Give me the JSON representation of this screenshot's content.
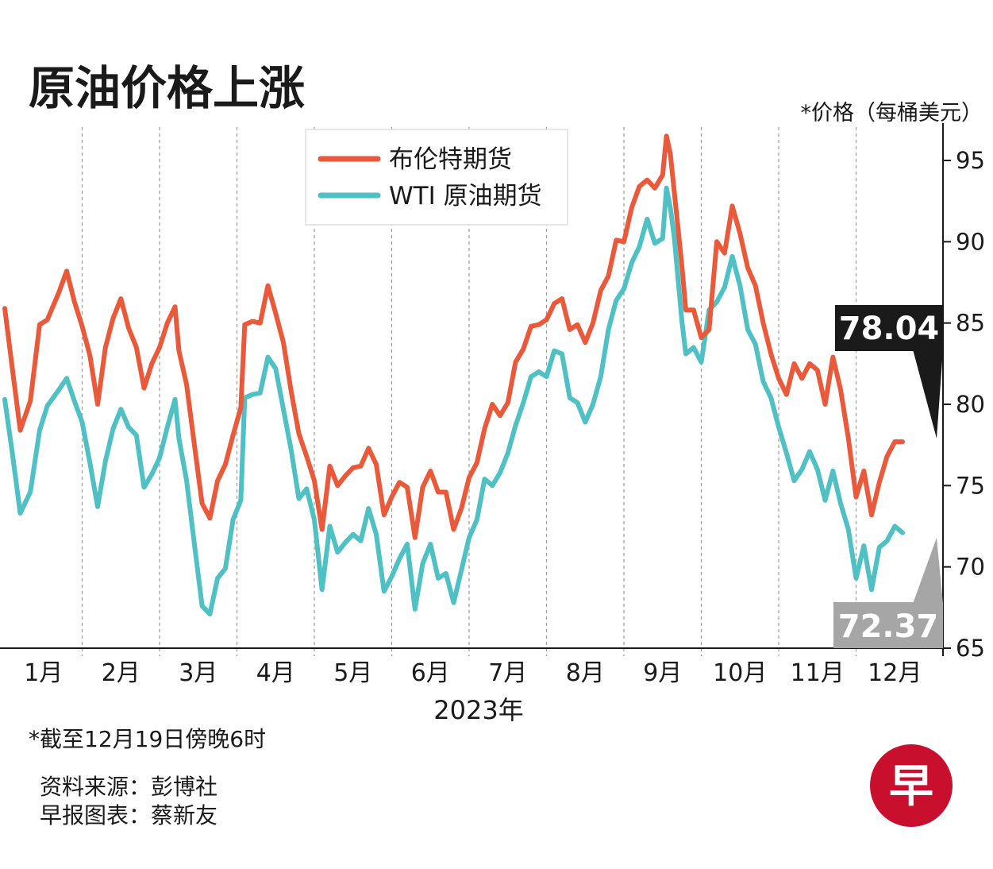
{
  "title": "原油价格上涨",
  "unit_label": "*价格（每桶美元）",
  "note": "*截至12月19日傍晚6时",
  "source": "资料来源：彭博社",
  "credit": "早报图表：蔡新友",
  "logo_char": "早",
  "colors": {
    "brent": "#ea5a3a",
    "wti": "#4fc0c4",
    "callout_brent": "#1a1a1a",
    "callout_wti": "#a6a6a6",
    "logo": "#c8102e"
  },
  "chart_data": {
    "type": "line",
    "xlabel": "2023年",
    "ylabel": "*价格（每桶美元）",
    "ylim": [
      65,
      97
    ],
    "yticks": [
      65,
      70,
      75,
      80,
      85,
      90,
      95
    ],
    "x_range": [
      0,
      12
    ],
    "months": [
      "1月",
      "2月",
      "3月",
      "4月",
      "5月",
      "6月",
      "7月",
      "8月",
      "9月",
      "10月",
      "11月",
      "12月"
    ],
    "legend_position": "top-center",
    "grid": "vertical dashed month separators",
    "series": [
      {
        "name": "布伦特期货",
        "key": "brent",
        "end_label": "78.04",
        "points": [
          [
            0.0,
            85.9
          ],
          [
            0.1,
            82.1
          ],
          [
            0.2,
            78.4
          ],
          [
            0.33,
            80.2
          ],
          [
            0.45,
            84.9
          ],
          [
            0.55,
            85.2
          ],
          [
            0.7,
            86.9
          ],
          [
            0.8,
            88.2
          ],
          [
            0.9,
            86.3
          ],
          [
            1.0,
            84.8
          ],
          [
            1.1,
            83.0
          ],
          [
            1.2,
            80.0
          ],
          [
            1.3,
            83.5
          ],
          [
            1.4,
            85.3
          ],
          [
            1.5,
            86.5
          ],
          [
            1.6,
            84.7
          ],
          [
            1.7,
            83.5
          ],
          [
            1.8,
            81.0
          ],
          [
            1.9,
            82.5
          ],
          [
            2.0,
            83.5
          ],
          [
            2.1,
            85.0
          ],
          [
            2.2,
            86.0
          ],
          [
            2.25,
            83.3
          ],
          [
            2.35,
            81.2
          ],
          [
            2.45,
            77.5
          ],
          [
            2.55,
            73.9
          ],
          [
            2.65,
            73.0
          ],
          [
            2.75,
            75.3
          ],
          [
            2.85,
            76.3
          ],
          [
            2.95,
            78.1
          ],
          [
            3.05,
            79.8
          ],
          [
            3.1,
            84.9
          ],
          [
            3.2,
            85.1
          ],
          [
            3.3,
            85.0
          ],
          [
            3.4,
            87.3
          ],
          [
            3.5,
            85.6
          ],
          [
            3.6,
            83.8
          ],
          [
            3.7,
            80.8
          ],
          [
            3.8,
            78.2
          ],
          [
            3.9,
            76.8
          ],
          [
            4.0,
            75.3
          ],
          [
            4.1,
            72.3
          ],
          [
            4.2,
            76.2
          ],
          [
            4.3,
            75.0
          ],
          [
            4.4,
            75.6
          ],
          [
            4.5,
            76.1
          ],
          [
            4.6,
            76.2
          ],
          [
            4.7,
            77.3
          ],
          [
            4.8,
            76.3
          ],
          [
            4.9,
            73.2
          ],
          [
            5.0,
            74.3
          ],
          [
            5.1,
            75.2
          ],
          [
            5.2,
            74.9
          ],
          [
            5.3,
            71.8
          ],
          [
            5.4,
            74.9
          ],
          [
            5.5,
            75.9
          ],
          [
            5.6,
            74.6
          ],
          [
            5.7,
            74.6
          ],
          [
            5.8,
            72.3
          ],
          [
            5.9,
            73.6
          ],
          [
            6.0,
            75.5
          ],
          [
            6.1,
            76.4
          ],
          [
            6.2,
            78.5
          ],
          [
            6.3,
            80.0
          ],
          [
            6.4,
            79.3
          ],
          [
            6.5,
            80.1
          ],
          [
            6.6,
            82.6
          ],
          [
            6.7,
            83.4
          ],
          [
            6.8,
            84.8
          ],
          [
            6.9,
            84.9
          ],
          [
            7.0,
            85.2
          ],
          [
            7.1,
            86.2
          ],
          [
            7.2,
            86.5
          ],
          [
            7.3,
            84.6
          ],
          [
            7.4,
            84.9
          ],
          [
            7.5,
            83.8
          ],
          [
            7.6,
            85.0
          ],
          [
            7.7,
            87.0
          ],
          [
            7.8,
            87.9
          ],
          [
            7.9,
            90.1
          ],
          [
            8.0,
            90.0
          ],
          [
            8.1,
            92.1
          ],
          [
            8.2,
            93.4
          ],
          [
            8.3,
            93.8
          ],
          [
            8.4,
            93.3
          ],
          [
            8.5,
            94.1
          ],
          [
            8.55,
            96.5
          ],
          [
            8.6,
            95.4
          ],
          [
            8.65,
            93.1
          ],
          [
            8.75,
            88.5
          ],
          [
            8.8,
            85.8
          ],
          [
            8.9,
            85.8
          ],
          [
            9.0,
            84.1
          ],
          [
            9.1,
            84.6
          ],
          [
            9.2,
            90.0
          ],
          [
            9.3,
            89.3
          ],
          [
            9.4,
            92.2
          ],
          [
            9.5,
            90.5
          ],
          [
            9.6,
            88.4
          ],
          [
            9.7,
            87.3
          ],
          [
            9.8,
            85.0
          ],
          [
            9.9,
            83.1
          ],
          [
            10.0,
            81.6
          ],
          [
            10.1,
            80.6
          ],
          [
            10.2,
            82.5
          ],
          [
            10.3,
            81.6
          ],
          [
            10.4,
            82.5
          ],
          [
            10.5,
            82.1
          ],
          [
            10.6,
            80.0
          ],
          [
            10.7,
            82.9
          ],
          [
            10.8,
            80.9
          ],
          [
            10.9,
            77.9
          ],
          [
            11.0,
            74.3
          ],
          [
            11.1,
            75.9
          ],
          [
            11.2,
            73.2
          ],
          [
            11.3,
            75.2
          ],
          [
            11.4,
            76.8
          ],
          [
            11.5,
            77.7
          ],
          [
            11.6,
            77.7
          ]
        ]
      },
      {
        "name": "WTI 原油期货",
        "key": "wti",
        "end_label": "72.37",
        "points": [
          [
            0.0,
            80.3
          ],
          [
            0.1,
            76.9
          ],
          [
            0.2,
            73.3
          ],
          [
            0.33,
            74.6
          ],
          [
            0.45,
            78.4
          ],
          [
            0.55,
            79.9
          ],
          [
            0.7,
            80.9
          ],
          [
            0.8,
            81.6
          ],
          [
            0.9,
            80.2
          ],
          [
            1.0,
            78.9
          ],
          [
            1.1,
            76.4
          ],
          [
            1.2,
            73.7
          ],
          [
            1.3,
            76.5
          ],
          [
            1.4,
            78.5
          ],
          [
            1.5,
            79.7
          ],
          [
            1.6,
            78.6
          ],
          [
            1.7,
            78.1
          ],
          [
            1.8,
            74.9
          ],
          [
            1.9,
            75.7
          ],
          [
            2.0,
            76.7
          ],
          [
            2.1,
            78.6
          ],
          [
            2.2,
            80.3
          ],
          [
            2.25,
            77.9
          ],
          [
            2.35,
            75.3
          ],
          [
            2.45,
            71.4
          ],
          [
            2.55,
            67.6
          ],
          [
            2.65,
            67.1
          ],
          [
            2.75,
            69.3
          ],
          [
            2.85,
            69.9
          ],
          [
            2.95,
            72.9
          ],
          [
            3.05,
            74.1
          ],
          [
            3.1,
            80.4
          ],
          [
            3.2,
            80.6
          ],
          [
            3.3,
            80.7
          ],
          [
            3.4,
            82.9
          ],
          [
            3.5,
            82.2
          ],
          [
            3.6,
            79.7
          ],
          [
            3.7,
            77.2
          ],
          [
            3.8,
            74.2
          ],
          [
            3.9,
            74.8
          ],
          [
            4.0,
            72.9
          ],
          [
            4.1,
            68.6
          ],
          [
            4.2,
            72.5
          ],
          [
            4.3,
            70.9
          ],
          [
            4.4,
            71.5
          ],
          [
            4.5,
            72.0
          ],
          [
            4.6,
            71.6
          ],
          [
            4.7,
            73.6
          ],
          [
            4.8,
            72.0
          ],
          [
            4.9,
            68.5
          ],
          [
            5.0,
            69.4
          ],
          [
            5.1,
            70.5
          ],
          [
            5.2,
            71.4
          ],
          [
            5.3,
            67.4
          ],
          [
            5.4,
            70.2
          ],
          [
            5.5,
            71.4
          ],
          [
            5.6,
            69.3
          ],
          [
            5.7,
            69.6
          ],
          [
            5.8,
            67.8
          ],
          [
            5.9,
            69.8
          ],
          [
            6.0,
            71.8
          ],
          [
            6.1,
            72.9
          ],
          [
            6.2,
            75.4
          ],
          [
            6.3,
            75.0
          ],
          [
            6.4,
            75.8
          ],
          [
            6.5,
            77.0
          ],
          [
            6.6,
            78.7
          ],
          [
            6.7,
            80.1
          ],
          [
            6.8,
            81.7
          ],
          [
            6.9,
            82.0
          ],
          [
            7.0,
            81.7
          ],
          [
            7.1,
            83.3
          ],
          [
            7.2,
            83.1
          ],
          [
            7.3,
            80.4
          ],
          [
            7.4,
            80.1
          ],
          [
            7.5,
            78.9
          ],
          [
            7.6,
            80.0
          ],
          [
            7.7,
            81.7
          ],
          [
            7.8,
            84.6
          ],
          [
            7.9,
            86.4
          ],
          [
            8.0,
            87.1
          ],
          [
            8.1,
            88.7
          ],
          [
            8.2,
            89.7
          ],
          [
            8.3,
            91.4
          ],
          [
            8.4,
            89.9
          ],
          [
            8.5,
            90.2
          ],
          [
            8.55,
            93.3
          ],
          [
            8.6,
            92.1
          ],
          [
            8.65,
            90.3
          ],
          [
            8.75,
            85.1
          ],
          [
            8.8,
            83.1
          ],
          [
            8.9,
            83.5
          ],
          [
            9.0,
            82.6
          ],
          [
            9.1,
            85.8
          ],
          [
            9.2,
            86.3
          ],
          [
            9.3,
            87.2
          ],
          [
            9.4,
            89.1
          ],
          [
            9.5,
            87.3
          ],
          [
            9.6,
            84.6
          ],
          [
            9.7,
            83.7
          ],
          [
            9.8,
            81.4
          ],
          [
            9.9,
            80.4
          ],
          [
            10.0,
            78.6
          ],
          [
            10.1,
            77.0
          ],
          [
            10.2,
            75.3
          ],
          [
            10.3,
            76.0
          ],
          [
            10.4,
            77.1
          ],
          [
            10.5,
            76.0
          ],
          [
            10.6,
            74.1
          ],
          [
            10.7,
            75.9
          ],
          [
            10.8,
            73.9
          ],
          [
            10.9,
            72.3
          ],
          [
            11.0,
            69.3
          ],
          [
            11.1,
            71.3
          ],
          [
            11.2,
            68.6
          ],
          [
            11.3,
            71.2
          ],
          [
            11.4,
            71.6
          ],
          [
            11.5,
            72.5
          ],
          [
            11.6,
            72.1
          ]
        ]
      }
    ]
  }
}
